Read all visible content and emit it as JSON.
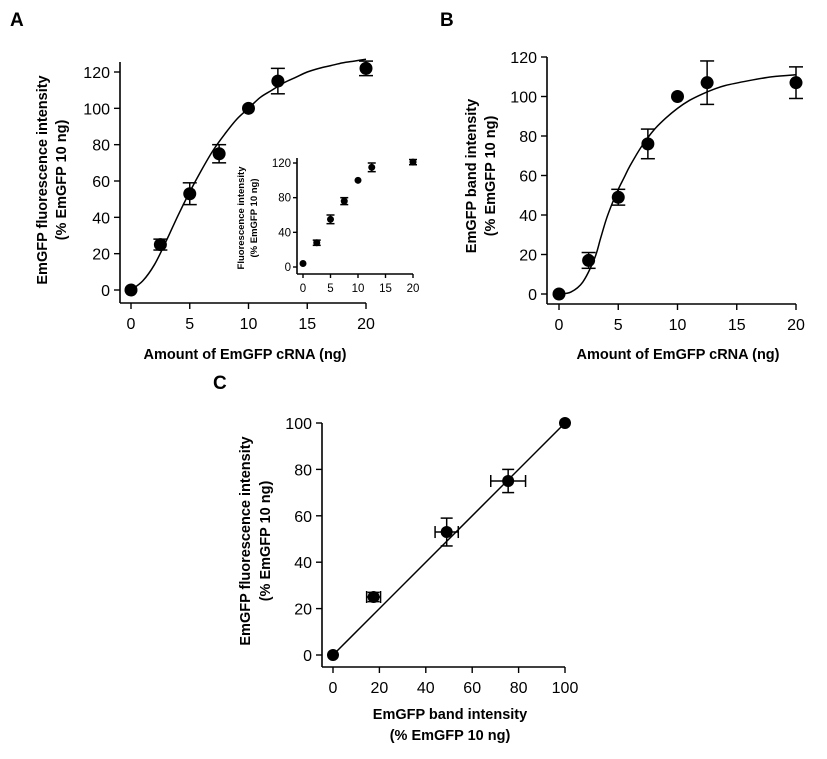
{
  "chart_data": [
    {
      "id": "A",
      "panel_label": "A",
      "type": "scatter",
      "title": "",
      "xlabel": "Amount of EmGFP cRNA (ng)",
      "ylabel": [
        "EmGFP fluorescence intensity",
        "(% EmGFP 10 ng)"
      ],
      "xlim": [
        0,
        20
      ],
      "ylim": [
        0,
        120
      ],
      "xticks": [
        0,
        5,
        10,
        15,
        20
      ],
      "yticks": [
        0,
        20,
        40,
        60,
        80,
        100,
        120
      ],
      "grid": false,
      "fit": "sigmoidal",
      "series": [
        {
          "name": "EmGFP fluorescence",
          "x": [
            0,
            2.5,
            5,
            7.5,
            10,
            12.5,
            20
          ],
          "y": [
            0,
            25,
            53,
            75,
            100,
            115,
            122
          ],
          "yerr": [
            0,
            3,
            6,
            5,
            0,
            7,
            4
          ]
        }
      ],
      "fit_curve": {
        "x": [
          0,
          1,
          2,
          3,
          4,
          5,
          6,
          7,
          8,
          9,
          10,
          11,
          12,
          13,
          14,
          15,
          16,
          17,
          18,
          19,
          20
        ],
        "y": [
          0,
          5,
          14,
          27,
          41,
          54,
          66,
          77,
          86,
          94,
          100,
          106,
          110,
          114,
          117,
          120,
          122,
          123.5,
          125,
          126,
          127
        ]
      }
    },
    {
      "id": "A_inset",
      "panel_label": "",
      "type": "scatter",
      "title": "",
      "xlabel": "",
      "ylabel": [
        "Fluorescence intensity",
        "(% EmGFP 10 ng)"
      ],
      "xlim": [
        0,
        20
      ],
      "ylim": [
        0,
        120
      ],
      "xticks": [
        0,
        5,
        10,
        15,
        20
      ],
      "yticks": [
        0,
        40,
        80,
        120
      ],
      "grid": false,
      "series": [
        {
          "name": "Fluorescence (inset)",
          "x": [
            0,
            2.5,
            5,
            7.5,
            10,
            12.5,
            20
          ],
          "y": [
            4,
            28,
            55,
            76,
            100,
            115,
            121
          ],
          "yerr": [
            0,
            3,
            5,
            4,
            0,
            5,
            3
          ]
        }
      ]
    },
    {
      "id": "B",
      "panel_label": "B",
      "type": "scatter",
      "title": "",
      "xlabel": "Amount of EmGFP cRNA (ng)",
      "ylabel": [
        "EmGFP band intensity",
        "(% EmGFP 10 ng)"
      ],
      "xlim": [
        0,
        20
      ],
      "ylim": [
        0,
        120
      ],
      "xticks": [
        0,
        5,
        10,
        15,
        20
      ],
      "yticks": [
        0,
        20,
        40,
        60,
        80,
        100,
        120
      ],
      "grid": false,
      "fit": "sigmoidal",
      "series": [
        {
          "name": "EmGFP band",
          "x": [
            0,
            2.5,
            5,
            7.5,
            10,
            12.5,
            20
          ],
          "y": [
            0,
            17,
            49,
            76,
            100,
            107,
            107
          ],
          "yerr": [
            0,
            4,
            4,
            7.5,
            0,
            11,
            8
          ]
        }
      ],
      "fit_curve": {
        "x": [
          0,
          1,
          2,
          3,
          3.5,
          4,
          4.5,
          5,
          5.5,
          6,
          7,
          8,
          9,
          10,
          11,
          12,
          13,
          14,
          16,
          18,
          20
        ],
        "y": [
          0,
          1,
          6,
          18,
          28,
          38,
          46,
          53,
          59,
          65,
          75,
          83,
          89,
          94,
          98,
          101,
          103.5,
          105.5,
          108,
          110,
          111
        ]
      }
    },
    {
      "id": "C",
      "panel_label": "C",
      "type": "scatter",
      "title": "",
      "xlabel": [
        "EmGFP band intensity",
        "(% EmGFP 10 ng)"
      ],
      "ylabel": [
        "EmGFP fluorescence intensity",
        "(% EmGFP 10 ng)"
      ],
      "xlim": [
        0,
        100
      ],
      "ylim": [
        0,
        100
      ],
      "xticks": [
        0,
        20,
        40,
        60,
        80,
        100
      ],
      "yticks": [
        0,
        20,
        40,
        60,
        80,
        100
      ],
      "grid": false,
      "fit": "linear",
      "series": [
        {
          "name": "Fluorescence vs band",
          "x": [
            0,
            17.5,
            49,
            75.5,
            100
          ],
          "y": [
            0,
            25,
            53,
            75,
            100
          ],
          "xerr": [
            0,
            3,
            5,
            7.5,
            0
          ],
          "yerr": [
            0,
            2,
            6,
            5,
            0
          ]
        }
      ],
      "fit_curve": {
        "x": [
          0,
          100
        ],
        "y": [
          0,
          100
        ]
      }
    }
  ]
}
